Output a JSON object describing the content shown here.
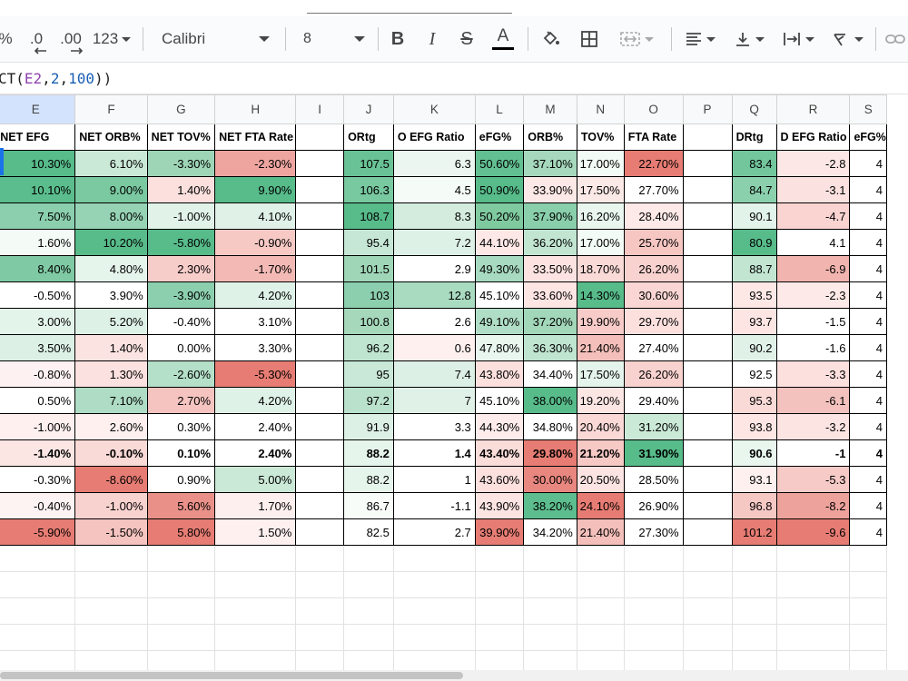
{
  "formula": {
    "prefix": "CT(",
    "ref": "E2",
    "sep1": ",",
    "arg1": "2",
    "sep2": ",",
    "arg2": "100",
    "suffix": "))"
  },
  "toolbar": {
    "percent": "%",
    "dec_decrease": ".0",
    "dec_increase": ".00",
    "number_format": "123",
    "font": "Calibri",
    "font_size": "8",
    "bold": "B",
    "italic": "I",
    "strike": "S",
    "text_color": "A"
  },
  "columns": [
    {
      "letter": "E",
      "width": 97
    },
    {
      "letter": "F",
      "width": 82
    },
    {
      "letter": "G",
      "width": 76
    },
    {
      "letter": "H",
      "width": 90
    },
    {
      "letter": "I",
      "width": 70
    },
    {
      "letter": "J",
      "width": 61
    },
    {
      "letter": "K",
      "width": 94
    },
    {
      "letter": "L",
      "width": 55
    },
    {
      "letter": "M",
      "width": 62
    },
    {
      "letter": "N",
      "width": 53
    },
    {
      "letter": "O",
      "width": 67
    },
    {
      "letter": "P",
      "width": 70
    },
    {
      "letter": "Q",
      "width": 53
    },
    {
      "letter": "R",
      "width": 82
    },
    {
      "letter": "S",
      "width": 40
    }
  ],
  "headers": [
    "NET EFG",
    "NET ORB%",
    "NET TOV%",
    "NET FTA Rate",
    "",
    "ORtg",
    "O EFG Ratio",
    "eFG%",
    "ORB%",
    "TOV%",
    "FTA Rate",
    "",
    "DRtg",
    "D EFG Ratio",
    "eFG%"
  ],
  "rows": [
    {
      "bold": false,
      "cells": [
        [
          "10.30%",
          "#57bb8a"
        ],
        [
          "6.10%",
          "#cbe9d7"
        ],
        [
          "-3.30%",
          "#9dd5b6"
        ],
        [
          "-2.30%",
          "#eea5a0"
        ],
        [
          "",
          ""
        ],
        [
          "107.5",
          "#69c295"
        ],
        [
          "6.3",
          "#eaf6ef"
        ],
        [
          "50.60%",
          "#62bf91"
        ],
        [
          "37.10%",
          "#a5d8bc"
        ],
        [
          "17.00%",
          "#f3fbf6"
        ],
        [
          "22.70%",
          "#e67c73"
        ],
        [
          "",
          ""
        ],
        [
          "83.4",
          "#73c69c"
        ],
        [
          "-2.8",
          "#fde7e6"
        ],
        [
          "4",
          "#ffffff"
        ]
      ]
    },
    {
      "bold": false,
      "cells": [
        [
          "10.10%",
          "#5bbd8d"
        ],
        [
          "9.00%",
          "#7ac9a1"
        ],
        [
          "1.40%",
          "#fbe0de"
        ],
        [
          "9.90%",
          "#57bb8a"
        ],
        [
          "",
          ""
        ],
        [
          "106.3",
          "#78c8a0"
        ],
        [
          "4.5",
          "#f5fbf7"
        ],
        [
          "50.90%",
          "#57bb8a"
        ],
        [
          "33.90%",
          "#fce8e6"
        ],
        [
          "17.50%",
          "#fbe9e7"
        ],
        [
          "27.70%",
          "#ffffff"
        ],
        [
          "",
          ""
        ],
        [
          "84.7",
          "#8bd0ad"
        ],
        [
          "-3.1",
          "#fbe2e0"
        ],
        [
          "4",
          "#ffffff"
        ]
      ]
    },
    {
      "bold": false,
      "cells": [
        [
          "7.50%",
          "#8ccfae"
        ],
        [
          "8.00%",
          "#96d3b4"
        ],
        [
          "-1.00%",
          "#e1f3e8"
        ],
        [
          "4.10%",
          "#e0f2e7"
        ],
        [
          "",
          ""
        ],
        [
          "108.7",
          "#57bb8a"
        ],
        [
          "8.3",
          "#d3ecde"
        ],
        [
          "50.20%",
          "#7fca9f"
        ],
        [
          "37.90%",
          "#89cfab"
        ],
        [
          "16.20%",
          "#e9f6ee"
        ],
        [
          "28.40%",
          "#fde9e7"
        ],
        [
          "",
          ""
        ],
        [
          "90.1",
          "#e2f3e9"
        ],
        [
          "-4.7",
          "#f9d4d1"
        ],
        [
          "4",
          "#ffffff"
        ]
      ]
    },
    {
      "bold": false,
      "cells": [
        [
          "1.60%",
          "#f4fbf7"
        ],
        [
          "10.20%",
          "#57bb8a"
        ],
        [
          "-5.80%",
          "#57bb8a"
        ],
        [
          "-0.90%",
          "#f6c9c5"
        ],
        [
          "",
          ""
        ],
        [
          "95.4",
          "#c6e7d5"
        ],
        [
          "7.2",
          "#def1e6"
        ],
        [
          "44.10%",
          "#fde8e6"
        ],
        [
          "36.20%",
          "#c2e5d2"
        ],
        [
          "17.00%",
          "#f3fbf6"
        ],
        [
          "25.70%",
          "#f6c6c2"
        ],
        [
          "",
          ""
        ],
        [
          "80.9",
          "#57bb8a"
        ],
        [
          "4.1",
          "#ffffff"
        ],
        [
          "4",
          "#ffffff"
        ]
      ]
    },
    {
      "bold": false,
      "cells": [
        [
          "8.40%",
          "#7fcaa4"
        ],
        [
          "4.80%",
          "#e6f5ec"
        ],
        [
          "2.30%",
          "#f7cdca"
        ],
        [
          "-1.70%",
          "#f3bab5"
        ],
        [
          "",
          ""
        ],
        [
          "101.5",
          "#9fd6b7"
        ],
        [
          "2.9",
          "#ffffff"
        ],
        [
          "49.30%",
          "#a7dac0"
        ],
        [
          "33.50%",
          "#fce3e1"
        ],
        [
          "18.70%",
          "#f9dad7"
        ],
        [
          "26.20%",
          "#f8d2cf"
        ],
        [
          "",
          ""
        ],
        [
          "88.7",
          "#c2e5d2"
        ],
        [
          "-6.9",
          "#f2b4af"
        ],
        [
          "4",
          "#ffffff"
        ]
      ]
    },
    {
      "bold": false,
      "cells": [
        [
          "-0.50%",
          "#ffffff"
        ],
        [
          "3.90%",
          "#ffffff"
        ],
        [
          "-3.90%",
          "#8ccfae"
        ],
        [
          "4.20%",
          "#dff2e7"
        ],
        [
          "",
          ""
        ],
        [
          "103",
          "#8ccfae"
        ],
        [
          "12.8",
          "#a9dbc1"
        ],
        [
          "45.10%",
          "#ffffff"
        ],
        [
          "33.60%",
          "#fde5e3"
        ],
        [
          "14.30%",
          "#57bb8a"
        ],
        [
          "30.60%",
          "#f9d6d3"
        ],
        [
          "",
          ""
        ],
        [
          "93.5",
          "#fde8e6"
        ],
        [
          "-2.3",
          "#fdeae8"
        ],
        [
          "4",
          "#ffffff"
        ]
      ]
    },
    {
      "bold": false,
      "cells": [
        [
          "3.00%",
          "#e3f4ea"
        ],
        [
          "5.20%",
          "#def1e6"
        ],
        [
          "-0.40%",
          "#ffffff"
        ],
        [
          "3.10%",
          "#ffffff"
        ],
        [
          "",
          ""
        ],
        [
          "100.8",
          "#a6d8bc"
        ],
        [
          "2.6",
          "#ffffff"
        ],
        [
          "49.10%",
          "#b0ddc6"
        ],
        [
          "37.20%",
          "#a2d7ba"
        ],
        [
          "19.90%",
          "#f7ccc8"
        ],
        [
          "29.70%",
          "#fbe0de"
        ],
        [
          "",
          ""
        ],
        [
          "93.7",
          "#fde5e3"
        ],
        [
          "-1.5",
          "#ffffff"
        ],
        [
          "4",
          "#ffffff"
        ]
      ]
    },
    {
      "bold": false,
      "cells": [
        [
          "3.50%",
          "#dcf0e5"
        ],
        [
          "1.40%",
          "#fbe3e1"
        ],
        [
          "0.00%",
          "#ffffff"
        ],
        [
          "3.30%",
          "#ffffff"
        ],
        [
          "",
          ""
        ],
        [
          "96.2",
          "#bfe4d0"
        ],
        [
          "0.6",
          "#fdf0ef"
        ],
        [
          "47.80%",
          "#e8f6ee"
        ],
        [
          "36.30%",
          "#bfe4d0"
        ],
        [
          "21.40%",
          "#f4bfba"
        ],
        [
          "27.40%",
          "#ffffff"
        ],
        [
          "",
          ""
        ],
        [
          "90.2",
          "#e0f2e7"
        ],
        [
          "-1.6",
          "#ffffff"
        ],
        [
          "4",
          "#ffffff"
        ]
      ]
    },
    {
      "bold": false,
      "cells": [
        [
          "-0.80%",
          "#fdf2f1"
        ],
        [
          "1.30%",
          "#fbe1df"
        ],
        [
          "-2.60%",
          "#b4dfc8"
        ],
        [
          "-5.30%",
          "#e67c73"
        ],
        [
          "",
          ""
        ],
        [
          "95",
          "#c9e8d7"
        ],
        [
          "7.4",
          "#ddf0e5"
        ],
        [
          "43.80%",
          "#fbe0de"
        ],
        [
          "34.40%",
          "#ffffff"
        ],
        [
          "17.50%",
          "#e5f4eb"
        ],
        [
          "26.20%",
          "#f8d2cf"
        ],
        [
          "",
          ""
        ],
        [
          "92.5",
          "#ffffff"
        ],
        [
          "-3.3",
          "#fbe0de"
        ],
        [
          "4",
          "#ffffff"
        ]
      ]
    },
    {
      "bold": false,
      "cells": [
        [
          "0.50%",
          "#ffffff"
        ],
        [
          "7.10%",
          "#aedcc4"
        ],
        [
          "2.70%",
          "#f5c4c0"
        ],
        [
          "4.20%",
          "#dff2e7"
        ],
        [
          "",
          ""
        ],
        [
          "97.2",
          "#b9e1cc"
        ],
        [
          "7",
          "#e0f2e7"
        ],
        [
          "45.10%",
          "#ffffff"
        ],
        [
          "38.00%",
          "#57bb8a"
        ],
        [
          "19.20%",
          "#fbe6e4"
        ],
        [
          "29.40%",
          "#ffffff"
        ],
        [
          "",
          ""
        ],
        [
          "95.3",
          "#f9dad7"
        ],
        [
          "-6.1",
          "#f4c2be"
        ],
        [
          "4",
          "#ffffff"
        ]
      ]
    },
    {
      "bold": false,
      "cells": [
        [
          "-1.00%",
          "#fdf0ef"
        ],
        [
          "2.60%",
          "#fdf0ef"
        ],
        [
          "0.30%",
          "#ffffff"
        ],
        [
          "2.40%",
          "#ffffff"
        ],
        [
          "",
          ""
        ],
        [
          "91.9",
          "#ddf0e5"
        ],
        [
          "3.3",
          "#ffffff"
        ],
        [
          "44.30%",
          "#fdeceb"
        ],
        [
          "34.80%",
          "#ffffff"
        ],
        [
          "20.40%",
          "#f9d8d5"
        ],
        [
          "31.20%",
          "#cbe9d7"
        ],
        [
          "",
          ""
        ],
        [
          "93.8",
          "#fde6e4"
        ],
        [
          "-3.2",
          "#fce4e2"
        ],
        [
          "4",
          "#ffffff"
        ]
      ]
    },
    {
      "bold": true,
      "cells": [
        [
          "-1.40%",
          "#fbe6e4"
        ],
        [
          "-0.10%",
          "#f9dad7"
        ],
        [
          "0.10%",
          "#ffffff"
        ],
        [
          "2.40%",
          "#ffffff"
        ],
        [
          "",
          ""
        ],
        [
          "88.2",
          "#e6f5ec"
        ],
        [
          "1.4",
          "#ffffff"
        ],
        [
          "43.40%",
          "#fadcd9"
        ],
        [
          "29.80%",
          "#e67c73"
        ],
        [
          "21.20%",
          "#f6c9c5"
        ],
        [
          "31.90%",
          "#57bb8a"
        ],
        [
          "",
          ""
        ],
        [
          "90.6",
          "#e8f6ee"
        ],
        [
          "-1",
          "#ffffff"
        ],
        [
          "4",
          "#ffffff"
        ]
      ]
    },
    {
      "bold": false,
      "cells": [
        [
          "-0.30%",
          "#ffffff"
        ],
        [
          "-8.60%",
          "#e67c73"
        ],
        [
          "0.90%",
          "#ffffff"
        ],
        [
          "5.00%",
          "#cbe9d7"
        ],
        [
          "",
          ""
        ],
        [
          "88.2",
          "#e6f5ec"
        ],
        [
          "1",
          "#ffffff"
        ],
        [
          "43.60%",
          "#fbe0de"
        ],
        [
          "30.00%",
          "#e8877f"
        ],
        [
          "20.50%",
          "#fbe4e2"
        ],
        [
          "28.50%",
          "#ffffff"
        ],
        [
          "",
          ""
        ],
        [
          "93.1",
          "#fdf0ef"
        ],
        [
          "-5.3",
          "#f6cac6"
        ],
        [
          "4",
          "#ffffff"
        ]
      ]
    },
    {
      "bold": false,
      "cells": [
        [
          "-0.40%",
          "#fdf3f2"
        ],
        [
          "-1.00%",
          "#f8d2cf"
        ],
        [
          "5.60%",
          "#e99189"
        ],
        [
          "1.70%",
          "#fdefee"
        ],
        [
          "",
          ""
        ],
        [
          "86.7",
          "#f7fcf9"
        ],
        [
          "-1.1",
          "#ffffff"
        ],
        [
          "43.90%",
          "#fbe4e2"
        ],
        [
          "38.20%",
          "#5dbd8e"
        ],
        [
          "24.10%",
          "#e67c73"
        ],
        [
          "26.90%",
          "#ffffff"
        ],
        [
          "",
          ""
        ],
        [
          "96.8",
          "#f6c8c4"
        ],
        [
          "-8.2",
          "#eea29c"
        ],
        [
          "4",
          "#ffffff"
        ]
      ]
    },
    {
      "bold": false,
      "cells": [
        [
          "-5.90%",
          "#e67c73"
        ],
        [
          "-1.50%",
          "#f5c4c0"
        ],
        [
          "5.80%",
          "#e67c73"
        ],
        [
          "1.50%",
          "#fdf0ef"
        ],
        [
          "",
          ""
        ],
        [
          "82.5",
          "#ffffff"
        ],
        [
          "2.7",
          "#ffffff"
        ],
        [
          "39.90%",
          "#e67c73"
        ],
        [
          "34.20%",
          "#ffffff"
        ],
        [
          "21.40%",
          "#f4bfba"
        ],
        [
          "27.30%",
          "#ffffff"
        ],
        [
          "",
          ""
        ],
        [
          "101.2",
          "#e67c73"
        ],
        [
          "-9.6",
          "#e67c73"
        ],
        [
          "4",
          "#ffffff"
        ]
      ]
    }
  ]
}
